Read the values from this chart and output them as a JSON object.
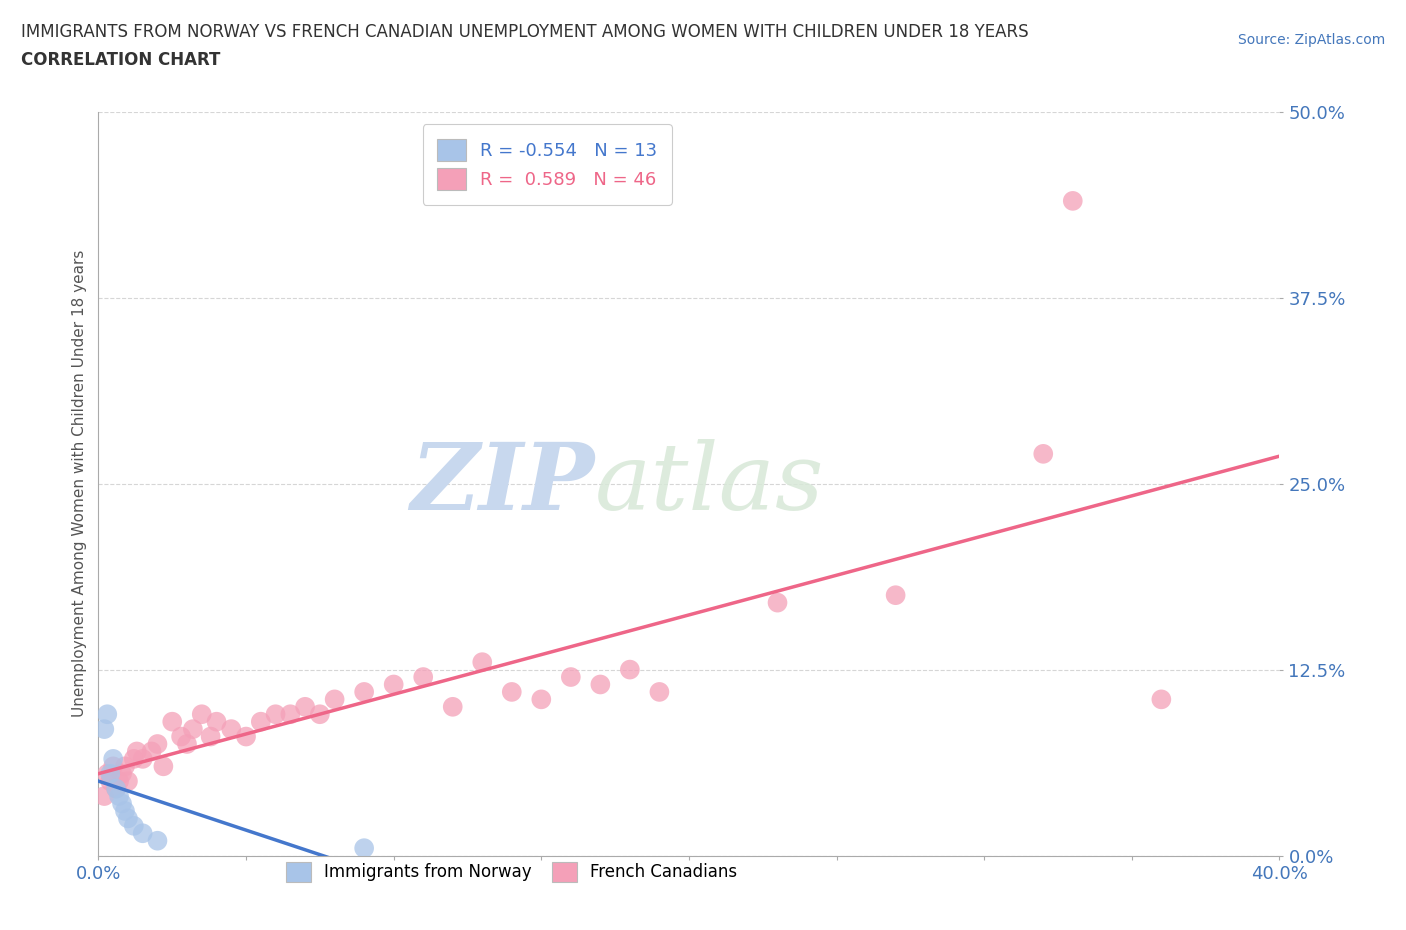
{
  "title_line1": "IMMIGRANTS FROM NORWAY VS FRENCH CANADIAN UNEMPLOYMENT AMONG WOMEN WITH CHILDREN UNDER 18 YEARS",
  "title_line2": "CORRELATION CHART",
  "source_text": "Source: ZipAtlas.com",
  "ylabel": "Unemployment Among Women with Children Under 18 years",
  "xlim": [
    0.0,
    0.4
  ],
  "ylim": [
    0.0,
    0.5
  ],
  "xticks": [
    0.0,
    0.05,
    0.1,
    0.15,
    0.2,
    0.25,
    0.3,
    0.35,
    0.4
  ],
  "xtick_labels": [
    "0.0%",
    "",
    "",
    "",
    "",
    "",
    "",
    "",
    "40.0%"
  ],
  "ytick_labels": [
    "0.0%",
    "12.5%",
    "25.0%",
    "37.5%",
    "50.0%"
  ],
  "yticks": [
    0.0,
    0.125,
    0.25,
    0.375,
    0.5
  ],
  "norway_R": -0.554,
  "norway_N": 13,
  "canada_R": 0.589,
  "canada_N": 46,
  "norway_color": "#a8c4e8",
  "canada_color": "#f4a0b8",
  "norway_line_color": "#4477cc",
  "canada_line_color": "#ee6688",
  "norway_scatter_edge": "none",
  "canada_scatter_edge": "none",
  "norway_x": [
    0.002,
    0.003,
    0.004,
    0.005,
    0.006,
    0.007,
    0.008,
    0.009,
    0.01,
    0.012,
    0.015,
    0.02,
    0.09
  ],
  "norway_y": [
    0.085,
    0.095,
    0.055,
    0.065,
    0.045,
    0.04,
    0.035,
    0.03,
    0.025,
    0.02,
    0.015,
    0.01,
    0.005
  ],
  "canada_x": [
    0.002,
    0.003,
    0.004,
    0.005,
    0.006,
    0.007,
    0.008,
    0.009,
    0.01,
    0.012,
    0.013,
    0.015,
    0.018,
    0.02,
    0.022,
    0.025,
    0.028,
    0.03,
    0.032,
    0.035,
    0.038,
    0.04,
    0.045,
    0.05,
    0.055,
    0.06,
    0.065,
    0.07,
    0.075,
    0.08,
    0.09,
    0.1,
    0.11,
    0.12,
    0.13,
    0.14,
    0.15,
    0.16,
    0.17,
    0.18,
    0.19,
    0.23,
    0.27,
    0.32,
    0.33,
    0.36
  ],
  "canada_y": [
    0.04,
    0.055,
    0.05,
    0.06,
    0.045,
    0.05,
    0.055,
    0.06,
    0.05,
    0.065,
    0.07,
    0.065,
    0.07,
    0.075,
    0.06,
    0.09,
    0.08,
    0.075,
    0.085,
    0.095,
    0.08,
    0.09,
    0.085,
    0.08,
    0.09,
    0.095,
    0.095,
    0.1,
    0.095,
    0.105,
    0.11,
    0.115,
    0.12,
    0.1,
    0.13,
    0.11,
    0.105,
    0.12,
    0.115,
    0.125,
    0.11,
    0.17,
    0.175,
    0.27,
    0.44,
    0.105
  ],
  "watermark_zip": "ZIP",
  "watermark_atlas": "atlas",
  "watermark_color": "#c8d8ee",
  "background_color": "#ffffff",
  "grid_color": "#cccccc",
  "title_color": "#333333",
  "axis_label_color": "#4477bb",
  "ylabel_color": "#555555"
}
